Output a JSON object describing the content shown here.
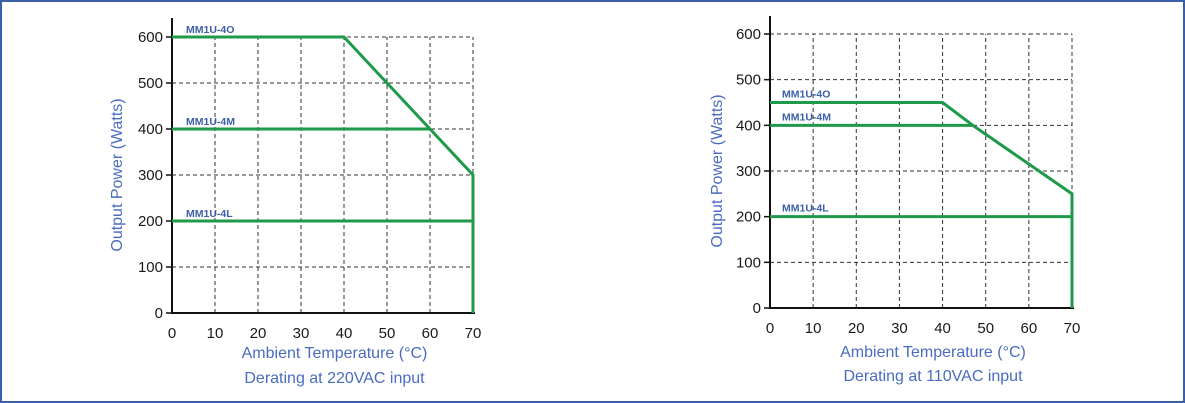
{
  "chart_data": [
    {
      "type": "line",
      "title": "",
      "xlabel": "Ambient Temperature (°C)",
      "caption": "Derating at 220VAC input",
      "ylabel": "Output Power (Watts)",
      "xlim": [
        0,
        70
      ],
      "ylim": [
        0,
        600
      ],
      "xticks": [
        0,
        10,
        20,
        30,
        40,
        50,
        60,
        70
      ],
      "yticks": [
        0,
        100,
        200,
        300,
        400,
        500,
        600
      ],
      "grid": true,
      "line_color": "#1f9a4a",
      "series": [
        {
          "name": "MM1U-4O",
          "x": [
            0,
            40,
            70,
            70
          ],
          "y": [
            600,
            600,
            300,
            0
          ]
        },
        {
          "name": "MM1U-4M",
          "x": [
            0,
            60
          ],
          "y": [
            400,
            400
          ]
        },
        {
          "name": "MM1U-4L",
          "x": [
            0,
            70
          ],
          "y": [
            200,
            200
          ]
        }
      ]
    },
    {
      "type": "line",
      "title": "",
      "xlabel": "Ambient Temperature (°C)",
      "caption": "Derating at 110VAC input",
      "ylabel": "Output Power (Watts)",
      "xlim": [
        0,
        70
      ],
      "ylim": [
        0,
        600
      ],
      "xticks": [
        0,
        10,
        20,
        30,
        40,
        50,
        60,
        70
      ],
      "yticks": [
        0,
        100,
        200,
        300,
        400,
        500,
        600
      ],
      "grid": true,
      "line_color": "#1f9a4a",
      "series": [
        {
          "name": "MM1U-4O",
          "x": [
            0,
            40,
            47
          ],
          "y": [
            450,
            450,
            400
          ]
        },
        {
          "name": "MM1U-4M",
          "x": [
            0,
            47,
            70,
            70
          ],
          "y": [
            400,
            400,
            250,
            0
          ]
        },
        {
          "name": "MM1U-4L",
          "x": [
            0,
            70
          ],
          "y": [
            200,
            200
          ]
        }
      ]
    }
  ]
}
